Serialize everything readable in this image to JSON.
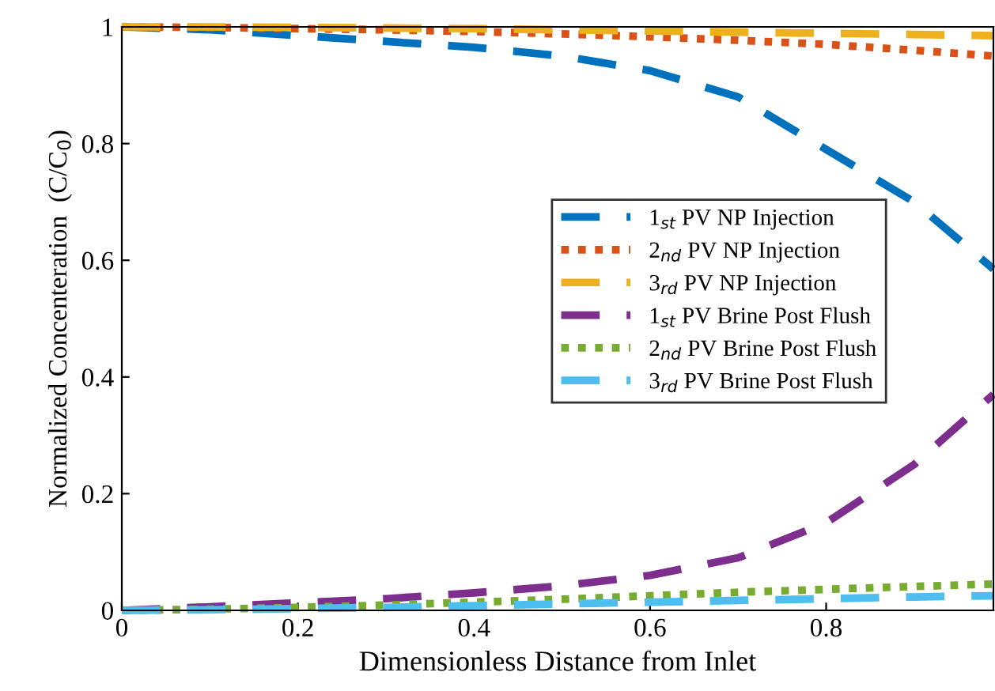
{
  "chart_data": {
    "type": "line",
    "xlabel": "Dimensionless Distance from Inlet",
    "ylabel": "Normalized Concenteration  (C/C$_{0}$)",
    "x": [
      0,
      0.1,
      0.2,
      0.3,
      0.4,
      0.5,
      0.6,
      0.7,
      0.8,
      0.9,
      0.99
    ],
    "series": [
      {
        "name": "1$_{st}$ PV NP Injection",
        "color": "#0072bd",
        "line_style": "dashed",
        "values": [
          1,
          0.995,
          0.985,
          0.975,
          0.965,
          0.95,
          0.925,
          0.88,
          0.79,
          0.7,
          0.585
        ]
      },
      {
        "name": "2$_{nd}$ PV NP Injection",
        "color": "#d95319",
        "line_style": "dotted",
        "values": [
          1,
          0.999,
          0.997,
          0.995,
          0.992,
          0.988,
          0.983,
          0.977,
          0.97,
          0.96,
          0.95
        ]
      },
      {
        "name": "3$_{rd}$ PV NP Injection",
        "color": "#edb120",
        "line_style": "dashed",
        "values": [
          1,
          1,
          0.999,
          0.998,
          0.997,
          0.995,
          0.993,
          0.991,
          0.989,
          0.987,
          0.985
        ]
      },
      {
        "name": "1$_{st}$ PV Brine Post Flush",
        "color": "#7e2f8e",
        "line_style": "dashed",
        "values": [
          0,
          0.006,
          0.013,
          0.02,
          0.03,
          0.042,
          0.06,
          0.09,
          0.15,
          0.25,
          0.37
        ]
      },
      {
        "name": "2$_{nd}$ PV Brine Post Flush",
        "color": "#77ac30",
        "line_style": "dotted",
        "values": [
          0,
          0.002,
          0.005,
          0.009,
          0.014,
          0.019,
          0.025,
          0.031,
          0.036,
          0.041,
          0.045
        ]
      },
      {
        "name": "3$_{rd}$ PV Brine Post Flush",
        "color": "#4dbeee",
        "line_style": "dashed",
        "values": [
          0,
          0.001,
          0.003,
          0.005,
          0.008,
          0.011,
          0.014,
          0.017,
          0.02,
          0.023,
          0.025
        ]
      }
    ],
    "xlim": [
      0,
      0.99
    ],
    "ylim": [
      0,
      1
    ],
    "xticks": [
      0,
      0.2,
      0.4,
      0.6,
      0.8
    ],
    "yticks": [
      0,
      0.2,
      0.4,
      0.6,
      0.8,
      1
    ],
    "grid": false,
    "legend": "center right"
  }
}
